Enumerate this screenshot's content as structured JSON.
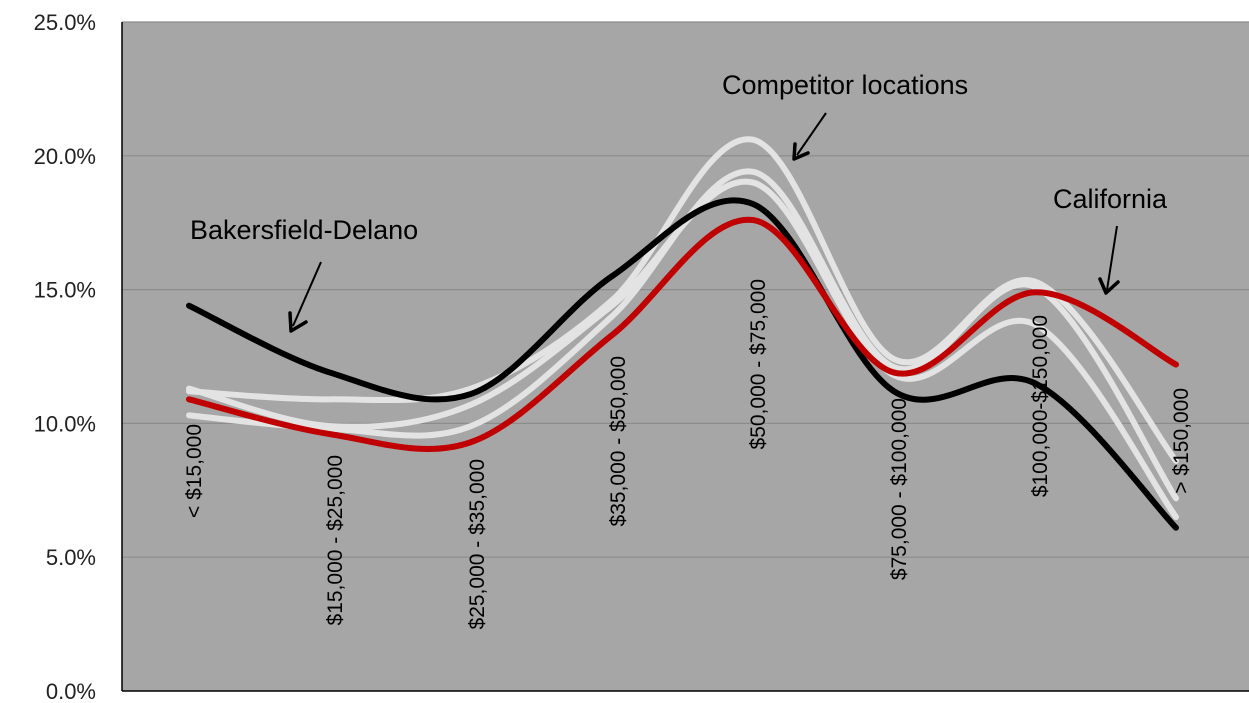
{
  "chart_data": {
    "type": "line",
    "title": "",
    "xlabel": "",
    "ylabel": "",
    "ylim": [
      0,
      25
    ],
    "yticks": [
      "0.0%",
      "5.0%",
      "10.0%",
      "15.0%",
      "20.0%",
      "25.0%"
    ],
    "ytick_values": [
      0,
      5,
      10,
      15,
      20,
      25
    ],
    "grid": true,
    "legend": "none",
    "colors": {
      "plot_background": "#a6a6a6",
      "gridline": "#8c8c8c",
      "axis": "#000000"
    },
    "categories": [
      "< $15,000",
      "$15,000 - $25,000",
      "$25,000 - $35,000",
      "$35,000 - $50,000",
      "$50,000 - $75,000",
      "$75,000 - $100,000",
      "$100,000-$150,000",
      "> $150,000"
    ],
    "series": [
      {
        "color": "#e3e3e3",
        "values": [
          11.2,
          10.9,
          11.3,
          14.6,
          20.6,
          12.4,
          15.3,
          8.6
        ]
      },
      {
        "color": "#e3e3e3",
        "values": [
          10.3,
          9.8,
          9.9,
          14.0,
          19.4,
          12.1,
          15.1,
          7.2
        ]
      },
      {
        "color": "#e3e3e3",
        "values": [
          11.3,
          9.9,
          10.7,
          14.4,
          19.0,
          11.8,
          13.7,
          6.5
        ]
      },
      {
        "color": "#000000",
        "values": [
          14.4,
          11.9,
          11.1,
          15.5,
          18.2,
          11.2,
          11.5,
          6.1
        ]
      },
      {
        "color": "#c00000",
        "values": [
          10.9,
          9.6,
          9.3,
          13.3,
          17.6,
          11.9,
          14.9,
          12.2
        ]
      }
    ],
    "annotations": [
      {
        "text": "Bakersfield-Delano"
      },
      {
        "text": "Competitor locations"
      },
      {
        "text": "California"
      }
    ]
  }
}
